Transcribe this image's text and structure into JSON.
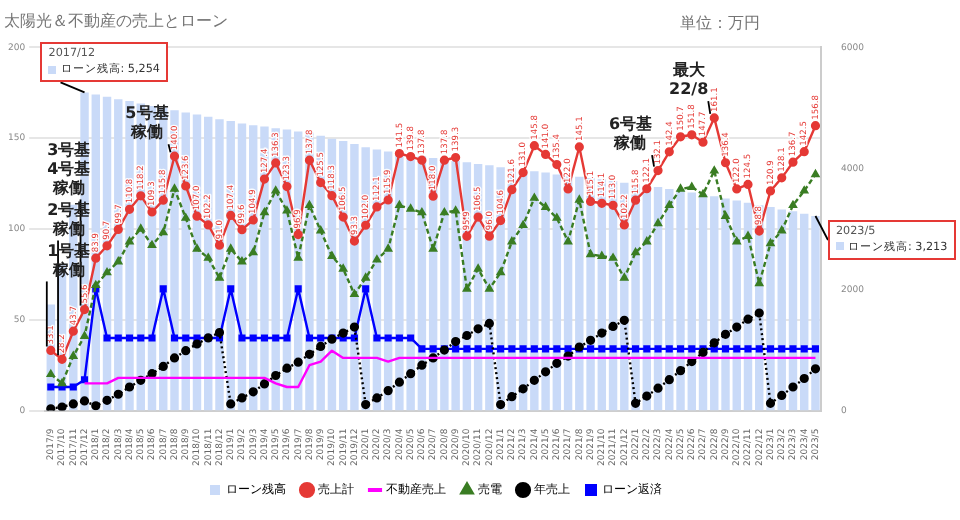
{
  "chart_data": {
    "type": "bar",
    "title": "太陽光＆不動産の売上とローン",
    "categories": [
      "2017/9",
      "2017/10",
      "2017/11",
      "2017/12",
      "2018/1",
      "2018/2",
      "2018/3",
      "2018/4",
      "2018/5",
      "2018/6",
      "2018/7",
      "2018/8",
      "2018/9",
      "2018/10",
      "2018/11",
      "2018/12",
      "2019/1",
      "2019/2",
      "2019/3",
      "2019/4",
      "2019/5",
      "2019/6",
      "2019/7",
      "2019/8",
      "2019/9",
      "2019/10",
      "2019/11",
      "2019/12",
      "2020/1",
      "2020/2",
      "2020/3",
      "2020/4",
      "2020/5",
      "2020/6",
      "2020/7",
      "2020/8",
      "2020/9",
      "2020/10",
      "2020/11",
      "2020/12",
      "2021/1",
      "2021/2",
      "2021/3",
      "2021/4",
      "2021/5",
      "2021/6",
      "2021/7",
      "2021/8",
      "2021/9",
      "2021/10",
      "2021/11",
      "2021/12",
      "2022/1",
      "2022/2",
      "2022/3",
      "2022/4",
      "2022/5",
      "2022/6",
      "2022/7",
      "2022/8",
      "2022/9",
      "2022/10",
      "2022/11",
      "2022/12",
      "2023/1",
      "2023/2",
      "2023/3",
      "2023/4",
      "2023/5"
    ],
    "series": [
      {
        "name": "ローン残高",
        "axis": "y2",
        "color": "#c9daf8",
        "values": [
          1750,
          2400,
          3400,
          5254,
          5220,
          5180,
          5140,
          5110,
          5070,
          5030,
          5000,
          4960,
          4920,
          4890,
          4850,
          4810,
          4780,
          4740,
          4710,
          4690,
          4660,
          4640,
          4610,
          4590,
          4540,
          4490,
          4450,
          4400,
          4350,
          4310,
          4280,
          4250,
          4230,
          4200,
          4170,
          4150,
          4120,
          4100,
          4070,
          4050,
          4020,
          4000,
          3970,
          3950,
          3930,
          3900,
          3880,
          3860,
          3840,
          3820,
          3790,
          3760,
          3740,
          3710,
          3690,
          3660,
          3630,
          3600,
          3570,
          3540,
          3500,
          3470,
          3430,
          3390,
          3360,
          3320,
          3290,
          3250,
          3213
        ]
      },
      {
        "name": "売上計",
        "type": "line",
        "color": "#e53935",
        "marker": "circle",
        "line_style": "solid",
        "values": [
          33.1,
          28.2,
          43.7,
          55.6,
          83.9,
          90.7,
          99.7,
          110.8,
          118.2,
          109.3,
          115.8,
          140.0,
          123.6,
          107.0,
          102.2,
          91.0,
          107.4,
          99.6,
          104.9,
          127.4,
          136.3,
          123.3,
          96.9,
          137.8,
          125.5,
          118.3,
          106.5,
          93.3,
          102.0,
          112.1,
          115.9,
          141.5,
          139.8,
          137.8,
          118.0,
          137.8,
          139.3,
          95.9,
          106.5,
          96.0,
          104.6,
          121.6,
          131.0,
          145.8,
          141.0,
          135.4,
          122.0,
          145.1,
          115.1,
          114.1,
          113.0,
          102.2,
          115.8,
          122.1,
          132.1,
          142.4,
          150.7,
          151.8,
          147.7,
          161.1,
          136.4,
          122.0,
          124.5,
          98.8,
          120.9,
          128.1,
          136.7,
          142.5,
          156.8
        ],
        "value_labels": [
          "33.1",
          "28.2",
          "43.7",
          "55.6",
          "83.9",
          "90.7",
          "99.7",
          "110.8",
          "118.2",
          "109.3",
          "115.8",
          "140.0",
          "123.6",
          "107.0",
          "102.2",
          "91.0",
          "107.4",
          "99.6",
          "104.9",
          "127.4",
          "136.3",
          "123.3",
          "96.9",
          "137.8",
          "125.5",
          "118.3",
          "106.5",
          "93.3",
          "102.0",
          "112.1",
          "115.9",
          "141.5",
          "139.8",
          "137.8",
          "118.0",
          "137.8",
          "139.3",
          "95.9",
          "106.5",
          "96.0",
          "104.6",
          "121.6",
          "131.0",
          "145.8",
          "141.0",
          "135.4",
          "122.0",
          "145.1",
          "115.1",
          "114.1",
          "113.0",
          "102.2",
          "115.8",
          "122.1",
          "132.1",
          "142.4",
          "150.7",
          "151.8",
          "147.7",
          "161.1",
          "136.4",
          "122.0",
          "124.5",
          "98.8",
          "120.9",
          "128.1",
          "136.7",
          "142.5",
          "156.8"
        ]
      },
      {
        "name": "不動産売上",
        "type": "line",
        "color": "#ff00ff",
        "marker": "none",
        "line_style": "solid",
        "values": [
          null,
          null,
          null,
          15,
          15,
          15,
          18,
          18,
          18,
          18,
          18,
          18,
          18,
          18,
          18,
          18,
          18,
          18,
          18,
          18,
          15,
          13,
          13,
          25,
          27,
          33,
          29,
          29,
          29,
          29,
          27,
          29,
          29,
          29,
          29,
          29,
          29,
          29,
          29,
          29,
          29,
          29,
          29,
          29,
          29,
          29,
          29,
          29,
          29,
          29,
          29,
          29,
          29,
          29,
          29,
          29,
          29,
          29,
          29,
          29,
          29,
          29,
          29,
          29,
          29,
          29,
          29,
          29,
          29
        ]
      },
      {
        "name": "売電",
        "type": "line",
        "color": "#3a7d23",
        "marker": "triangle",
        "line_style": "dashed",
        "values": [
          20,
          15,
          30,
          41,
          69,
          76,
          82,
          93,
          100,
          91,
          98,
          122,
          106,
          89,
          84,
          73,
          89,
          82,
          87,
          109,
          121,
          110,
          84,
          113,
          99,
          85,
          78,
          64,
          73,
          83,
          89,
          113,
          111,
          109,
          89,
          109,
          110,
          67,
          78,
          67,
          76,
          93,
          102,
          117,
          112,
          106,
          93,
          116,
          86,
          85,
          84,
          73,
          87,
          93,
          103,
          113,
          122,
          123,
          119,
          132,
          107,
          93,
          96,
          70,
          92,
          99,
          113,
          121,
          130
        ]
      },
      {
        "name": "年売上",
        "type": "line",
        "axis": "y2",
        "color": "#000000",
        "marker": "circle",
        "line_style": "dotted",
        "values": [
          30,
          60,
          110,
          160,
          80,
          170,
          270,
          390,
          500,
          610,
          730,
          870,
          990,
          1100,
          1200,
          1290,
          110,
          210,
          310,
          440,
          580,
          700,
          800,
          930,
          1060,
          1180,
          1280,
          1380,
          100,
          210,
          330,
          470,
          610,
          750,
          870,
          1000,
          1140,
          1240,
          1350,
          1440,
          100,
          230,
          360,
          500,
          640,
          780,
          900,
          1050,
          1160,
          1280,
          1390,
          1490,
          120,
          240,
          370,
          510,
          660,
          810,
          960,
          1120,
          1260,
          1380,
          1510,
          1610,
          120,
          250,
          390,
          530,
          690
        ]
      },
      {
        "name": "ローン返済",
        "type": "line",
        "color": "#0000ff",
        "marker": "square",
        "line_style": "solid",
        "values": [
          13,
          13,
          13,
          17,
          67,
          40,
          40,
          40,
          40,
          40,
          67,
          40,
          40,
          40,
          40,
          40,
          67,
          40,
          40,
          40,
          40,
          40,
          67,
          40,
          40,
          40,
          40,
          40,
          67,
          40,
          40,
          40,
          40,
          34,
          34,
          34,
          34,
          34,
          34,
          34,
          34,
          34,
          34,
          34,
          34,
          34,
          34,
          34,
          34,
          34,
          34,
          34,
          34,
          34,
          34,
          34,
          34,
          34,
          34,
          34,
          34,
          34,
          34,
          34,
          34,
          34,
          34,
          34,
          34
        ]
      }
    ],
    "ylim": [
      0,
      200
    ],
    "yticks": [
      0,
      50,
      100,
      150,
      200
    ],
    "y2lim": [
      0,
      6000
    ],
    "y2ticks": [
      0,
      2000,
      4000,
      6000
    ],
    "grid": "y",
    "legend": "bottom",
    "annotations": [
      "単位：万円",
      "2017/12",
      "ローン残高: 5,254",
      "2023/5",
      "ローン残高: 3,213",
      {
        "text": "1号基稼働",
        "x": "2017/9",
        "y": 33.1
      },
      {
        "text": "2号基稼働",
        "x": "2017/10",
        "y": 28.2
      },
      {
        "text": "3号基4号基稼働",
        "x": "2017/12",
        "y": 55.6
      },
      {
        "text": "5号基稼働",
        "x": "2018/8",
        "y": 140.0
      },
      {
        "text": "6号基稼働",
        "x": "2022/3",
        "y": 132.1
      },
      {
        "text": "最大22/8",
        "x": "2022/8",
        "y": 161.1
      }
    ]
  }
}
